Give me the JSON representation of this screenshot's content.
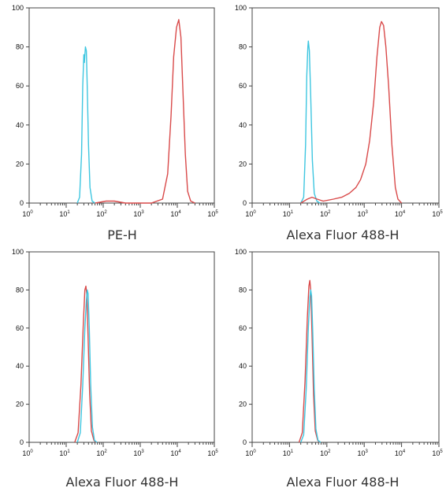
{
  "chart_data": [
    {
      "type": "line",
      "xlabel": "PE-H",
      "xscale": "log",
      "xlim": [
        1,
        100000
      ],
      "ylim": [
        0,
        100
      ],
      "yticks": [
        "0",
        "20",
        "40",
        "60",
        "80",
        "100"
      ],
      "xticks": [
        {
          "base": "10",
          "exp": "0"
        },
        {
          "base": "10",
          "exp": "1"
        },
        {
          "base": "10",
          "exp": "2"
        },
        {
          "base": "10",
          "exp": "3"
        },
        {
          "base": "10",
          "exp": "4"
        },
        {
          "base": "10",
          "exp": "5"
        }
      ],
      "grid": false,
      "series": [
        {
          "color": "#3ec6e0",
          "points": [
            [
              20,
              0
            ],
            [
              23,
              3
            ],
            [
              26,
              25
            ],
            [
              28,
              60
            ],
            [
              30,
              76
            ],
            [
              31,
              72
            ],
            [
              33,
              80
            ],
            [
              35,
              78
            ],
            [
              37,
              60
            ],
            [
              40,
              30
            ],
            [
              44,
              8
            ],
            [
              50,
              1
            ],
            [
              60,
              0
            ]
          ]
        },
        {
          "color": "#d94a4a",
          "points": [
            [
              60,
              0
            ],
            [
              120,
              1
            ],
            [
              200,
              1
            ],
            [
              400,
              0
            ],
            [
              2000,
              0
            ],
            [
              4000,
              2
            ],
            [
              5500,
              15
            ],
            [
              6800,
              45
            ],
            [
              8000,
              75
            ],
            [
              9500,
              90
            ],
            [
              11000,
              94
            ],
            [
              12500,
              85
            ],
            [
              14000,
              60
            ],
            [
              16500,
              25
            ],
            [
              19000,
              6
            ],
            [
              23000,
              1
            ],
            [
              30000,
              0
            ]
          ]
        }
      ]
    },
    {
      "type": "line",
      "xlabel": "Alexa Fluor 488-H",
      "xscale": "log",
      "xlim": [
        1,
        100000
      ],
      "ylim": [
        0,
        100
      ],
      "yticks": [
        "0",
        "20",
        "40",
        "60",
        "80",
        "100"
      ],
      "xticks": [
        {
          "base": "10",
          "exp": "0"
        },
        {
          "base": "10",
          "exp": "1"
        },
        {
          "base": "10",
          "exp": "2"
        },
        {
          "base": "10",
          "exp": "3"
        },
        {
          "base": "10",
          "exp": "4"
        },
        {
          "base": "10",
          "exp": "5"
        }
      ],
      "grid": false,
      "series": [
        {
          "color": "#3ec6e0",
          "points": [
            [
              20,
              0
            ],
            [
              24,
              3
            ],
            [
              27,
              30
            ],
            [
              29,
              65
            ],
            [
              31,
              80
            ],
            [
              32,
              83
            ],
            [
              34,
              78
            ],
            [
              37,
              55
            ],
            [
              41,
              22
            ],
            [
              46,
              5
            ],
            [
              54,
              1
            ],
            [
              65,
              0
            ]
          ]
        },
        {
          "color": "#d94a4a",
          "points": [
            [
              20,
              0
            ],
            [
              30,
              2
            ],
            [
              40,
              3
            ],
            [
              55,
              2
            ],
            [
              80,
              1
            ],
            [
              150,
              2
            ],
            [
              250,
              3
            ],
            [
              400,
              5
            ],
            [
              600,
              8
            ],
            [
              800,
              12
            ],
            [
              1100,
              20
            ],
            [
              1400,
              32
            ],
            [
              1800,
              52
            ],
            [
              2200,
              75
            ],
            [
              2600,
              90
            ],
            [
              2900,
              93
            ],
            [
              3300,
              91
            ],
            [
              3800,
              80
            ],
            [
              4500,
              60
            ],
            [
              5500,
              30
            ],
            [
              6800,
              8
            ],
            [
              8000,
              2
            ],
            [
              10000,
              0
            ]
          ]
        }
      ]
    },
    {
      "type": "line",
      "xlabel": "Alexa Fluor 488-H",
      "xscale": "log",
      "xlim": [
        1,
        100000
      ],
      "ylim": [
        0,
        100
      ],
      "yticks": [
        "0",
        "20",
        "40",
        "60",
        "80",
        "100"
      ],
      "xticks": [
        {
          "base": "10",
          "exp": "0"
        },
        {
          "base": "10",
          "exp": "1"
        },
        {
          "base": "10",
          "exp": "2"
        },
        {
          "base": "10",
          "exp": "3"
        },
        {
          "base": "10",
          "exp": "4"
        },
        {
          "base": "10",
          "exp": "5"
        }
      ],
      "grid": false,
      "series": [
        {
          "color": "#d94a4a",
          "points": [
            [
              17,
              0
            ],
            [
              21,
              5
            ],
            [
              25,
              30
            ],
            [
              29,
              62
            ],
            [
              32,
              80
            ],
            [
              34,
              82
            ],
            [
              36,
              78
            ],
            [
              39,
              55
            ],
            [
              43,
              25
            ],
            [
              48,
              6
            ],
            [
              56,
              1
            ],
            [
              65,
              0
            ]
          ]
        },
        {
          "color": "#3ec6e0",
          "points": [
            [
              20,
              0
            ],
            [
              24,
              5
            ],
            [
              28,
              30
            ],
            [
              32,
              60
            ],
            [
              35,
              74
            ],
            [
              37,
              80
            ],
            [
              39,
              78
            ],
            [
              42,
              60
            ],
            [
              46,
              30
            ],
            [
              51,
              8
            ],
            [
              58,
              1
            ],
            [
              68,
              0
            ]
          ]
        }
      ]
    },
    {
      "type": "line",
      "xlabel": "Alexa Fluor 488-H",
      "xscale": "log",
      "xlim": [
        1,
        100000
      ],
      "ylim": [
        0,
        100
      ],
      "yticks": [
        "0",
        "20",
        "40",
        "60",
        "80",
        "100"
      ],
      "xticks": [
        {
          "base": "10",
          "exp": "0"
        },
        {
          "base": "10",
          "exp": "1"
        },
        {
          "base": "10",
          "exp": "2"
        },
        {
          "base": "10",
          "exp": "3"
        },
        {
          "base": "10",
          "exp": "4"
        },
        {
          "base": "10",
          "exp": "5"
        }
      ],
      "grid": false,
      "series": [
        {
          "color": "#d94a4a",
          "points": [
            [
              18,
              0
            ],
            [
              22,
              5
            ],
            [
              26,
              32
            ],
            [
              30,
              65
            ],
            [
              33,
              82
            ],
            [
              35,
              85
            ],
            [
              37,
              80
            ],
            [
              40,
              58
            ],
            [
              44,
              25
            ],
            [
              49,
              6
            ],
            [
              57,
              1
            ],
            [
              66,
              0
            ]
          ]
        },
        {
          "color": "#3ec6e0",
          "points": [
            [
              20,
              0
            ],
            [
              24,
              4
            ],
            [
              28,
              28
            ],
            [
              32,
              60
            ],
            [
              35,
              76
            ],
            [
              37,
              80
            ],
            [
              39,
              77
            ],
            [
              42,
              58
            ],
            [
              46,
              28
            ],
            [
              51,
              7
            ],
            [
              58,
              1
            ],
            [
              68,
              0
            ]
          ]
        }
      ]
    }
  ]
}
